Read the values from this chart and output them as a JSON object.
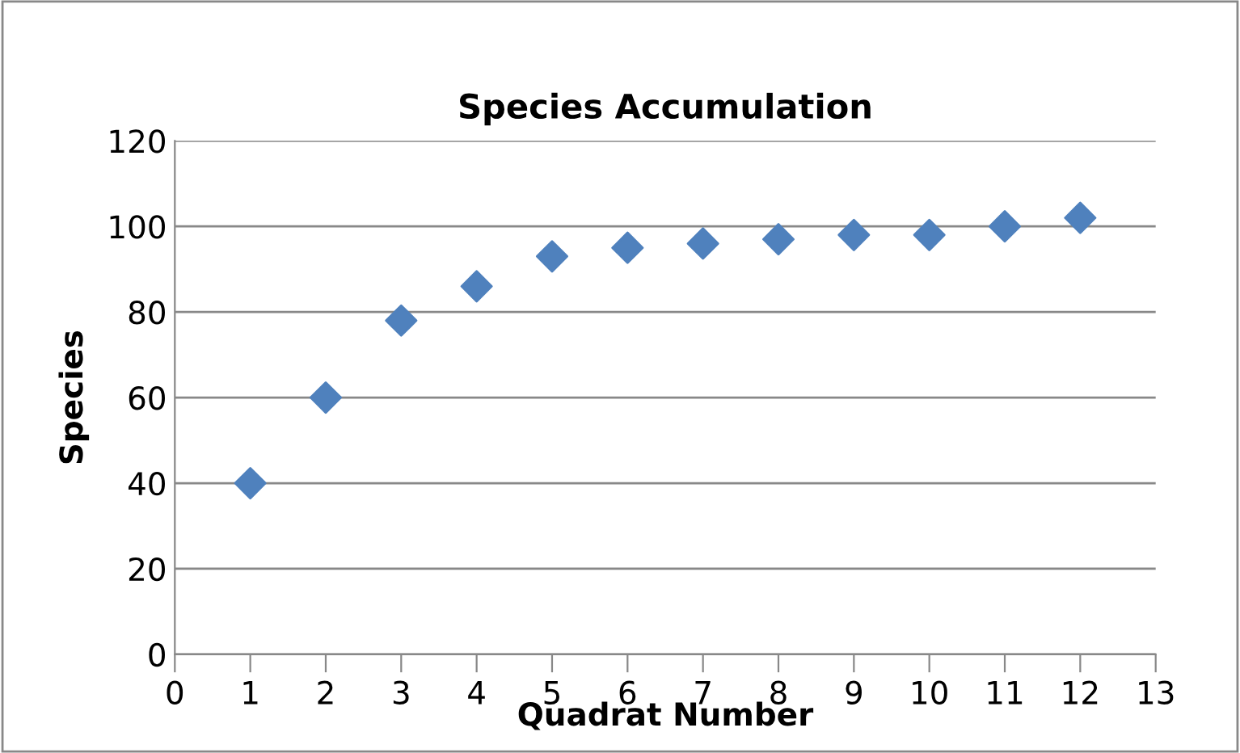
{
  "chart_data": {
    "type": "scatter",
    "title": "Species Accumulation",
    "xlabel": "Quadrat Number",
    "ylabel": "Species",
    "x": [
      1,
      2,
      3,
      4,
      5,
      6,
      7,
      8,
      9,
      10,
      11,
      12
    ],
    "series": [
      {
        "color": "#4f81bd",
        "values": [
          40,
          60,
          78,
          86,
          93,
          95,
          96,
          97,
          98,
          98,
          100,
          102
        ]
      }
    ],
    "xlim": [
      0,
      13
    ],
    "xticks": [
      0,
      1,
      2,
      3,
      4,
      5,
      6,
      7,
      8,
      9,
      10,
      11,
      12,
      13
    ],
    "ylim": [
      0,
      120
    ],
    "yticks": [
      0,
      20,
      40,
      60,
      80,
      100,
      120
    ],
    "grid": "y",
    "marker": "diamond",
    "legend": false
  }
}
